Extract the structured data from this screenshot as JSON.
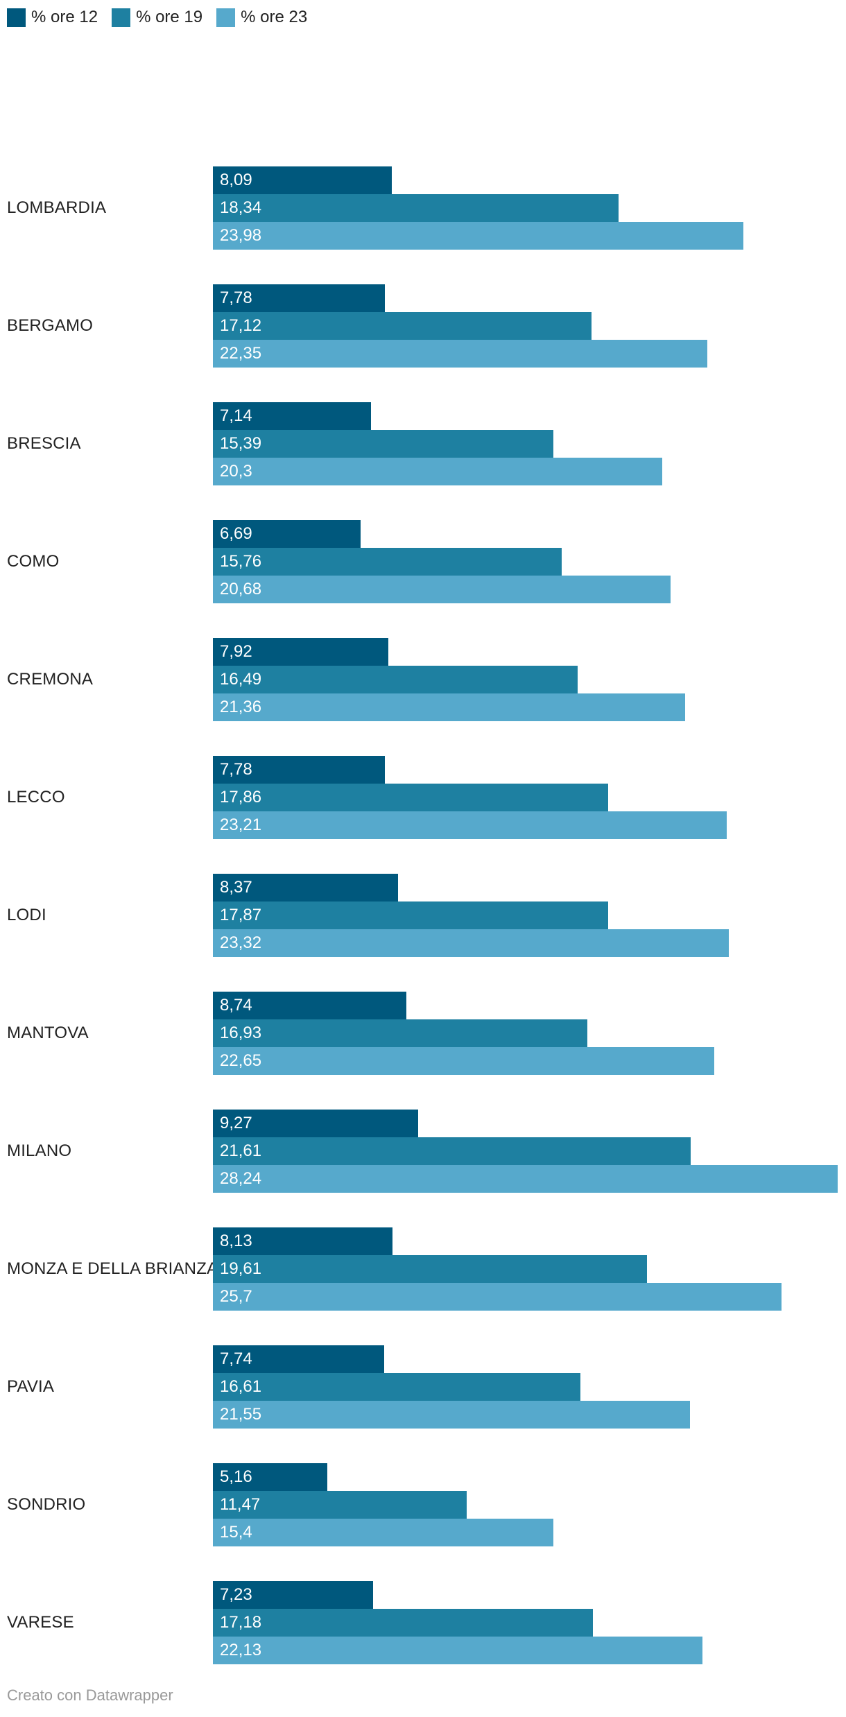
{
  "chart_data": {
    "type": "bar",
    "orientation": "horizontal",
    "title": "",
    "legend_position": "top-left",
    "grid": false,
    "xlim": [
      0,
      28.24
    ],
    "series_meta": [
      {
        "name": "% ore 12",
        "color": "#00587D"
      },
      {
        "name": "% ore 19",
        "color": "#1E80A1"
      },
      {
        "name": "% ore 23",
        "color": "#56A9CC"
      }
    ],
    "categories": [
      "LOMBARDIA",
      "BERGAMO",
      "BRESCIA",
      "COMO",
      "CREMONA",
      "LECCO",
      "LODI",
      "MANTOVA",
      "MILANO",
      "MONZA E DELLA BRIANZA",
      "PAVIA",
      "SONDRIO",
      "VARESE"
    ],
    "series": [
      {
        "name": "% ore 12",
        "values": [
          8.09,
          7.78,
          7.14,
          6.69,
          7.92,
          7.78,
          8.37,
          8.74,
          9.27,
          8.13,
          7.74,
          5.16,
          7.23
        ]
      },
      {
        "name": "% ore 19",
        "values": [
          18.34,
          17.12,
          15.39,
          15.76,
          16.49,
          17.86,
          17.87,
          16.93,
          21.61,
          19.61,
          16.61,
          11.47,
          17.18
        ]
      },
      {
        "name": "% ore 23",
        "values": [
          23.98,
          22.35,
          20.3,
          20.68,
          21.36,
          23.21,
          23.32,
          22.65,
          28.24,
          25.7,
          21.55,
          15.4,
          22.13
        ]
      }
    ],
    "rows": [
      {
        "label": "LOMBARDIA",
        "values": [
          8.09,
          18.34,
          23.98
        ],
        "display": [
          "8,09",
          "18,34",
          "23,98"
        ]
      },
      {
        "label": "BERGAMO",
        "values": [
          7.78,
          17.12,
          22.35
        ],
        "display": [
          "7,78",
          "17,12",
          "22,35"
        ]
      },
      {
        "label": "BRESCIA",
        "values": [
          7.14,
          15.39,
          20.3
        ],
        "display": [
          "7,14",
          "15,39",
          "20,3"
        ]
      },
      {
        "label": "COMO",
        "values": [
          6.69,
          15.76,
          20.68
        ],
        "display": [
          "6,69",
          "15,76",
          "20,68"
        ]
      },
      {
        "label": "CREMONA",
        "values": [
          7.92,
          16.49,
          21.36
        ],
        "display": [
          "7,92",
          "16,49",
          "21,36"
        ]
      },
      {
        "label": "LECCO",
        "values": [
          7.78,
          17.86,
          23.21
        ],
        "display": [
          "7,78",
          "17,86",
          "23,21"
        ]
      },
      {
        "label": "LODI",
        "values": [
          8.37,
          17.87,
          23.32
        ],
        "display": [
          "8,37",
          "17,87",
          "23,32"
        ]
      },
      {
        "label": "MANTOVA",
        "values": [
          8.74,
          16.93,
          22.65
        ],
        "display": [
          "8,74",
          "16,93",
          "22,65"
        ]
      },
      {
        "label": "MILANO",
        "values": [
          9.27,
          21.61,
          28.24
        ],
        "display": [
          "9,27",
          "21,61",
          "28,24"
        ]
      },
      {
        "label": "MONZA E DELLA BRIANZA",
        "values": [
          8.13,
          19.61,
          25.7
        ],
        "display": [
          "8,13",
          "19,61",
          "25,7"
        ]
      },
      {
        "label": "PAVIA",
        "values": [
          7.74,
          16.61,
          21.55
        ],
        "display": [
          "7,74",
          "16,61",
          "21,55"
        ]
      },
      {
        "label": "SONDRIO",
        "values": [
          5.16,
          11.47,
          15.4
        ],
        "display": [
          "5,16",
          "11,47",
          "15,4"
        ]
      },
      {
        "label": "VARESE",
        "values": [
          7.23,
          17.18,
          22.13
        ],
        "display": [
          "7,23",
          "17,18",
          "22,13"
        ]
      }
    ]
  },
  "footer": {
    "credit": "Creato con Datawrapper"
  }
}
